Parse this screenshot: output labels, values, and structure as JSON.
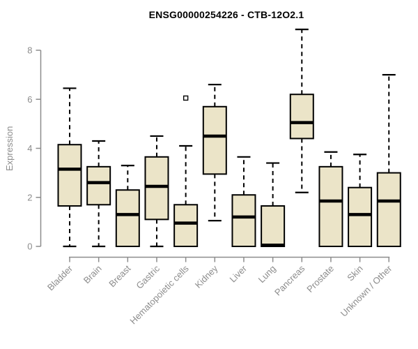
{
  "title": "ENSG00000254226 - CTB-12O2.1",
  "chart_data": {
    "type": "boxplot",
    "title": "ENSG00000254226 - CTB-12O2.1",
    "xlabel": "",
    "ylabel": "Expression",
    "ylim": [
      0,
      8
    ],
    "yticks": [
      0,
      2,
      4,
      6,
      8
    ],
    "grid": false,
    "legend": "none",
    "categories": [
      "Bladder",
      "Brain",
      "Breast",
      "Gastric",
      "Hematopoietic cells",
      "Kidney",
      "Liver",
      "Lung",
      "Pancreas",
      "Prostate",
      "Skin",
      "Unknown / Other"
    ],
    "series": [
      {
        "name": "Bladder",
        "min": 0,
        "q1": 1.65,
        "median": 3.15,
        "q3": 4.15,
        "max": 6.45,
        "outliers": []
      },
      {
        "name": "Brain",
        "min": 0,
        "q1": 1.7,
        "median": 2.6,
        "q3": 3.25,
        "max": 4.3,
        "outliers": []
      },
      {
        "name": "Breast",
        "min": 0,
        "q1": 0,
        "median": 1.3,
        "q3": 2.3,
        "max": 3.3,
        "outliers": []
      },
      {
        "name": "Gastric",
        "min": 0,
        "q1": 1.1,
        "median": 2.45,
        "q3": 3.65,
        "max": 4.5,
        "outliers": []
      },
      {
        "name": "Hematopoietic cells",
        "min": 0,
        "q1": 0,
        "median": 0.95,
        "q3": 1.7,
        "max": 4.1,
        "outliers": [
          6.05
        ]
      },
      {
        "name": "Kidney",
        "min": 1.05,
        "q1": 2.95,
        "median": 4.5,
        "q3": 5.7,
        "max": 6.6,
        "outliers": []
      },
      {
        "name": "Liver",
        "min": 0,
        "q1": 0,
        "median": 1.2,
        "q3": 2.1,
        "max": 3.65,
        "outliers": []
      },
      {
        "name": "Lung",
        "min": 0,
        "q1": 0,
        "median": 0.05,
        "q3": 1.65,
        "max": 3.4,
        "outliers": []
      },
      {
        "name": "Pancreas",
        "min": 2.2,
        "q1": 4.4,
        "median": 5.05,
        "q3": 6.2,
        "max": 8.85,
        "outliers": []
      },
      {
        "name": "Prostate",
        "min": 0,
        "q1": 0,
        "median": 1.85,
        "q3": 3.25,
        "max": 3.85,
        "outliers": []
      },
      {
        "name": "Skin",
        "min": 0,
        "q1": 0,
        "median": 1.3,
        "q3": 2.4,
        "max": 3.75,
        "outliers": []
      },
      {
        "name": "Unknown / Other",
        "min": 0,
        "q1": 0,
        "median": 1.85,
        "q3": 3.0,
        "max": 7.0,
        "outliers": []
      }
    ],
    "colors": {
      "box_fill": "#ebe4c8",
      "box_stroke": "#000000",
      "median": "#000000",
      "whisker": "#000000",
      "axis": "#8c8c8c",
      "title": "#000000",
      "background": "#ffffff"
    }
  }
}
